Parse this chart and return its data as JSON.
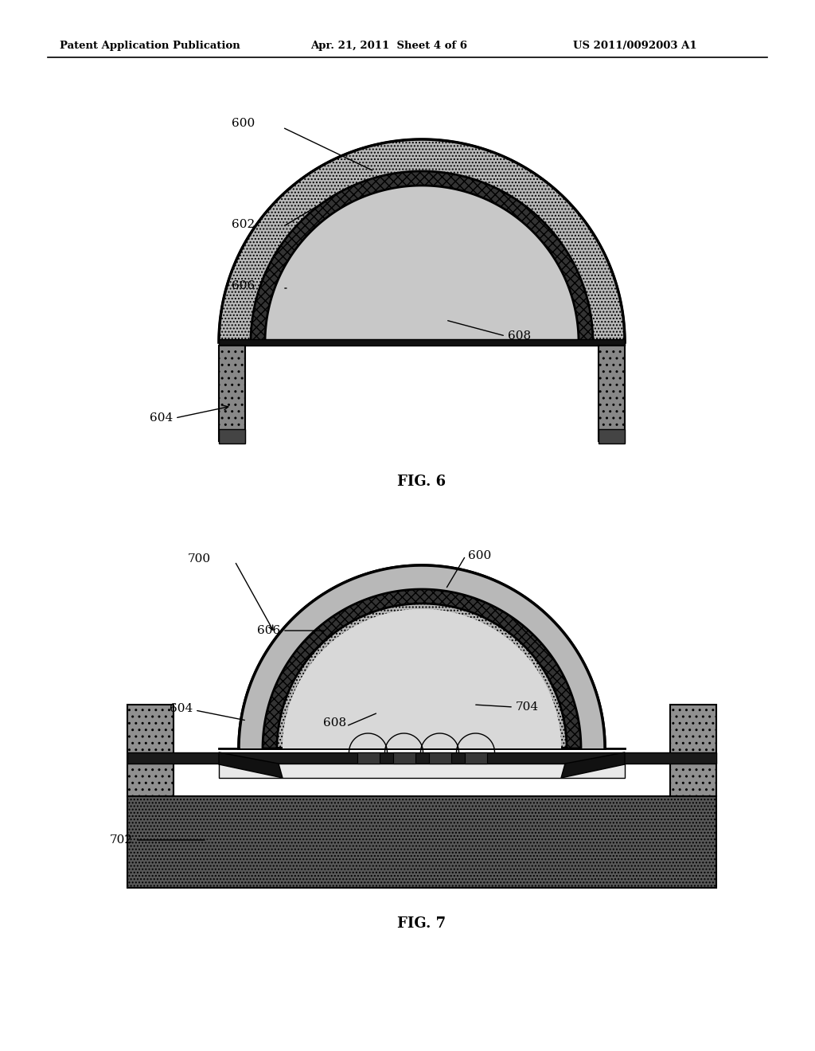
{
  "bg_color": "#ffffff",
  "header_left": "Patent Application Publication",
  "header_center": "Apr. 21, 2011  Sheet 4 of 6",
  "header_right": "US 2011/0092003 A1",
  "fig6_label": "FIG. 6",
  "fig7_label": "FIG. 7",
  "outer_dome_color": "#b8b8b8",
  "phos_layer_color": "#555555",
  "inner_dome_color": "#c8c8c8",
  "leg_color": "#888888",
  "black": "#000000",
  "substrate_color": "#606060",
  "wall_color": "#909090",
  "encap_color": "#d8d8d8",
  "board_color": "#cccccc",
  "chip_color": "#404040",
  "dark_rail": "#222222"
}
